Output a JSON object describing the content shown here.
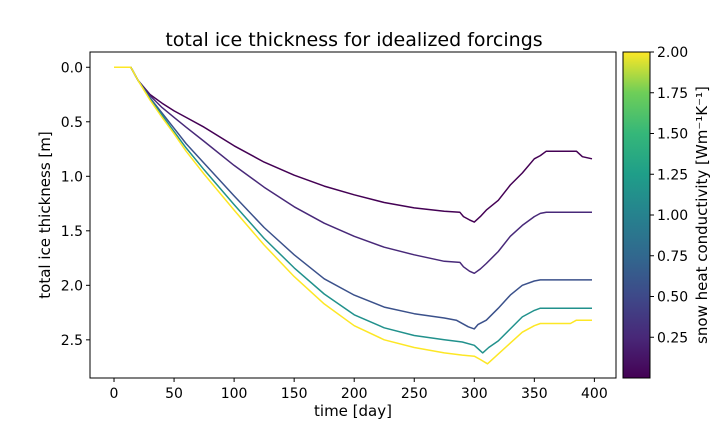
{
  "chart_data": {
    "type": "line",
    "title": "total ice thickness for idealized forcings",
    "xlabel": "time [day]",
    "ylabel": "total ice thickness [m]",
    "xlim": [
      -20,
      418
    ],
    "ylim": [
      2.85,
      -0.14
    ],
    "y_inverted": true,
    "xticks": [
      0,
      50,
      100,
      150,
      200,
      250,
      300,
      350,
      400
    ],
    "xtick_labels": [
      "0",
      "50",
      "100",
      "150",
      "200",
      "250",
      "300",
      "350",
      "400"
    ],
    "yticks": [
      0.0,
      0.5,
      1.0,
      1.5,
      2.0,
      2.5
    ],
    "ytick_labels": [
      "0.0",
      "0.5",
      "1.0",
      "1.5",
      "2.0",
      "2.5"
    ],
    "grid": false,
    "colorbar": {
      "label": "snow heat conductivity [Wm⁻¹K⁻¹]",
      "range": [
        0.0,
        2.0
      ],
      "colormap": "viridis",
      "ticks": [
        0.25,
        0.5,
        0.75,
        1.0,
        1.25,
        1.5,
        1.75,
        2.0
      ],
      "tick_labels": [
        "0.25",
        "0.50",
        "0.75",
        "1.00",
        "1.25",
        "1.50",
        "1.75",
        "2.00"
      ]
    },
    "series": [
      {
        "conductivity": 0.1,
        "color": "#440154",
        "x": [
          0,
          14,
          15,
          20,
          30,
          40,
          50,
          60,
          75,
          100,
          125,
          150,
          175,
          200,
          225,
          250,
          275,
          288,
          291,
          296,
          300,
          305,
          310,
          320,
          330,
          340,
          350,
          355,
          360,
          370,
          380,
          385,
          390,
          398
        ],
        "y": [
          0.0,
          0.0,
          0.02,
          0.12,
          0.25,
          0.33,
          0.4,
          0.46,
          0.55,
          0.72,
          0.87,
          0.99,
          1.09,
          1.17,
          1.24,
          1.29,
          1.32,
          1.33,
          1.37,
          1.4,
          1.42,
          1.37,
          1.31,
          1.22,
          1.08,
          0.97,
          0.84,
          0.81,
          0.77,
          0.77,
          0.77,
          0.77,
          0.82,
          0.84
        ]
      },
      {
        "conductivity": 0.2,
        "color": "#482979",
        "x": [
          0,
          14,
          15,
          20,
          30,
          40,
          50,
          60,
          75,
          100,
          125,
          150,
          175,
          200,
          225,
          250,
          275,
          288,
          291,
          296,
          300,
          305,
          310,
          320,
          330,
          340,
          350,
          355,
          360,
          370,
          380,
          390,
          398
        ],
        "y": [
          0.0,
          0.0,
          0.02,
          0.12,
          0.26,
          0.37,
          0.46,
          0.55,
          0.68,
          0.9,
          1.1,
          1.28,
          1.43,
          1.55,
          1.65,
          1.72,
          1.78,
          1.79,
          1.83,
          1.87,
          1.89,
          1.85,
          1.8,
          1.69,
          1.55,
          1.45,
          1.37,
          1.34,
          1.33,
          1.33,
          1.33,
          1.33,
          1.33
        ]
      },
      {
        "conductivity": 0.5,
        "color": "#3b518b",
        "x": [
          0,
          14,
          15,
          20,
          30,
          40,
          50,
          60,
          75,
          100,
          125,
          150,
          175,
          200,
          225,
          250,
          275,
          285,
          295,
          300,
          303,
          310,
          320,
          330,
          340,
          350,
          355,
          360,
          370,
          380,
          390,
          398
        ],
        "y": [
          0.0,
          0.0,
          0.02,
          0.12,
          0.28,
          0.42,
          0.56,
          0.7,
          0.88,
          1.18,
          1.47,
          1.72,
          1.94,
          2.09,
          2.2,
          2.26,
          2.3,
          2.32,
          2.38,
          2.4,
          2.36,
          2.32,
          2.21,
          2.09,
          2.0,
          1.96,
          1.95,
          1.95,
          1.95,
          1.95,
          1.95,
          1.95
        ]
      },
      {
        "conductivity": 1.0,
        "color": "#21918c",
        "x": [
          0,
          14,
          15,
          20,
          30,
          40,
          50,
          60,
          75,
          100,
          125,
          150,
          175,
          200,
          225,
          250,
          275,
          290,
          300,
          307,
          312,
          320,
          330,
          340,
          350,
          355,
          360,
          370,
          380,
          390,
          398
        ],
        "y": [
          0.0,
          0.0,
          0.02,
          0.12,
          0.29,
          0.44,
          0.59,
          0.74,
          0.94,
          1.26,
          1.57,
          1.84,
          2.08,
          2.27,
          2.39,
          2.46,
          2.5,
          2.52,
          2.55,
          2.62,
          2.57,
          2.51,
          2.4,
          2.29,
          2.23,
          2.21,
          2.21,
          2.21,
          2.21,
          2.21,
          2.21
        ]
      },
      {
        "conductivity": 2.0,
        "color": "#fde725",
        "x": [
          0,
          14,
          15,
          20,
          30,
          40,
          50,
          60,
          75,
          100,
          125,
          150,
          175,
          200,
          225,
          250,
          275,
          290,
          300,
          305,
          311,
          318,
          330,
          340,
          350,
          355,
          360,
          370,
          380,
          385,
          390,
          398
        ],
        "y": [
          0.0,
          0.0,
          0.02,
          0.12,
          0.3,
          0.46,
          0.61,
          0.77,
          0.98,
          1.31,
          1.63,
          1.92,
          2.17,
          2.37,
          2.5,
          2.57,
          2.62,
          2.64,
          2.65,
          2.68,
          2.72,
          2.65,
          2.53,
          2.43,
          2.37,
          2.35,
          2.35,
          2.35,
          2.35,
          2.32,
          2.32,
          2.32
        ]
      }
    ]
  }
}
